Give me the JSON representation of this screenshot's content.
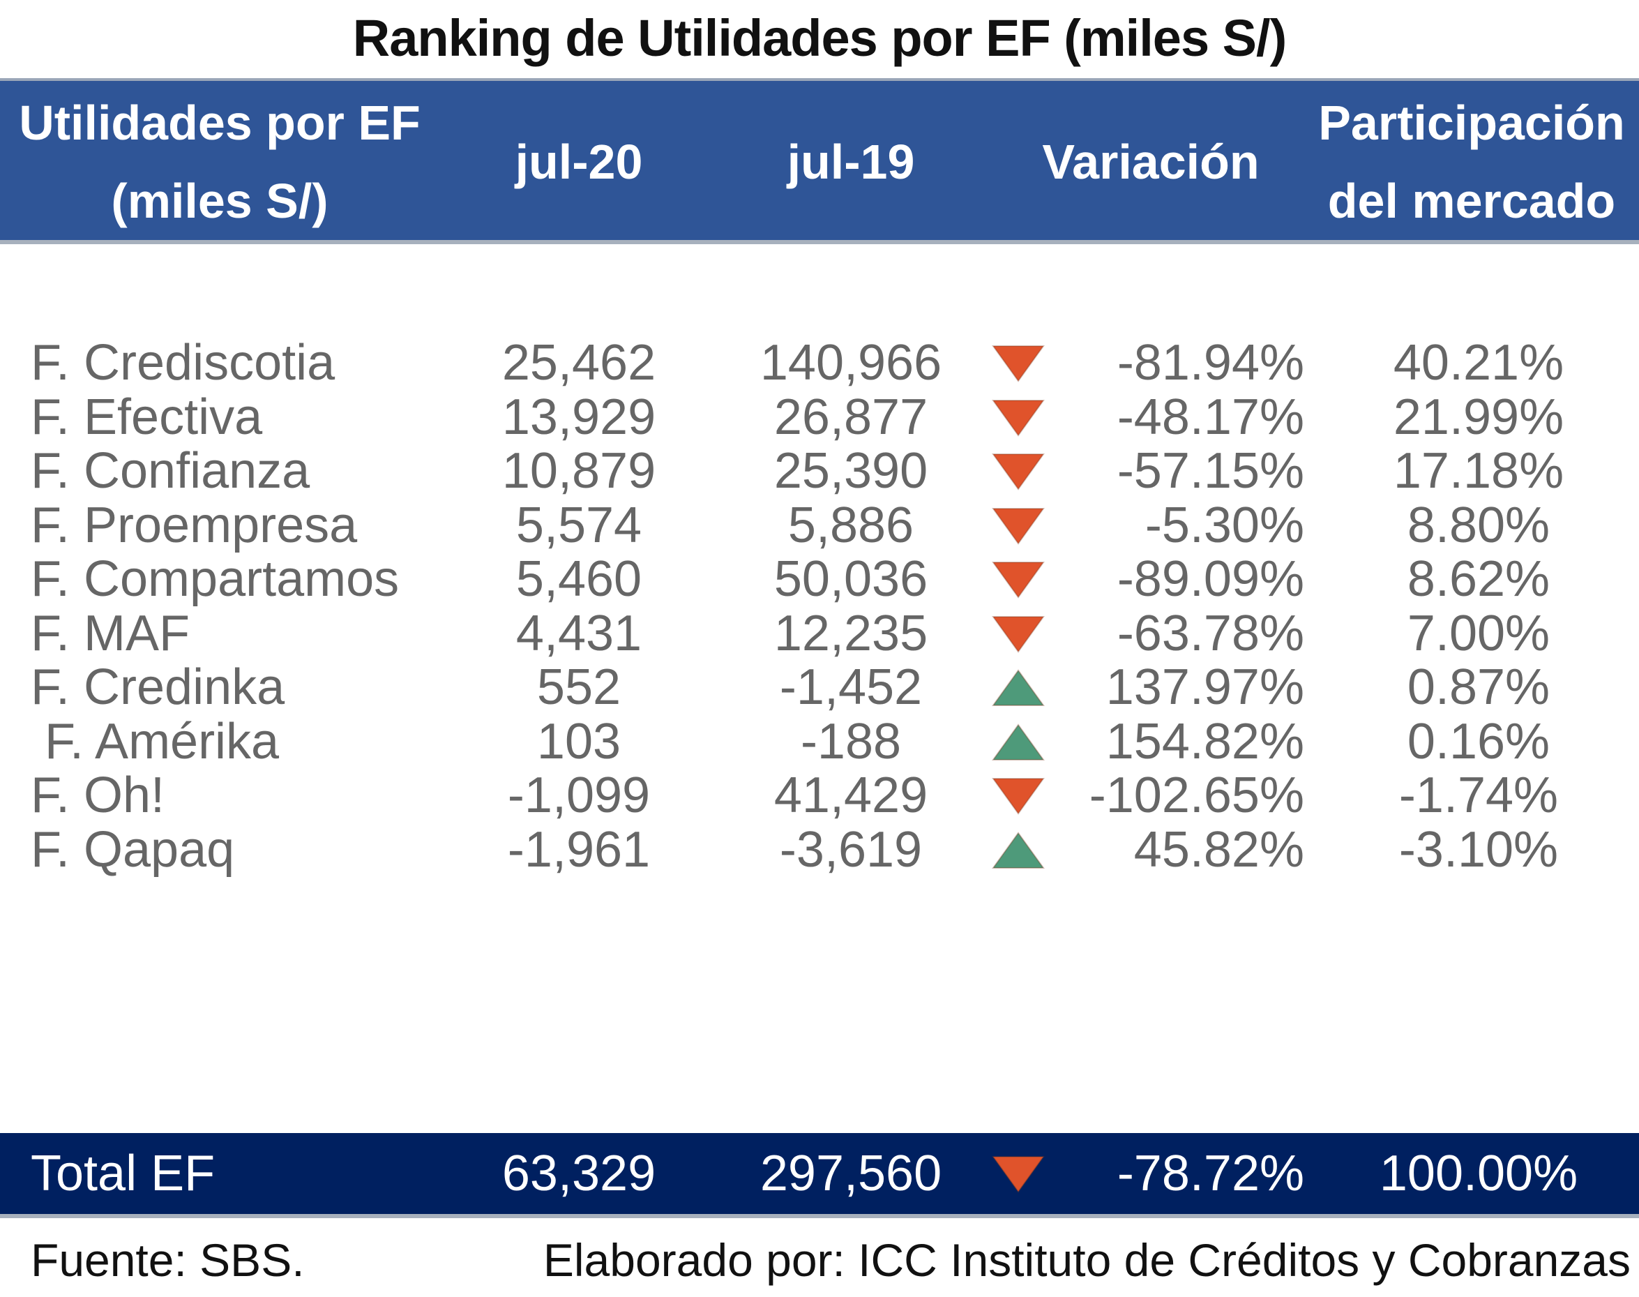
{
  "title": "Ranking de Utilidades por EF (miles S/)",
  "header": {
    "name_line1": "Utilidades por EF",
    "name_line2": "(miles S/)",
    "col_jul20": "jul-20",
    "col_jul19": "jul-19",
    "col_var": "Variación",
    "part_line1": "Participación",
    "part_line2": "del mercado"
  },
  "colors": {
    "header_bg": "#2f5597",
    "total_bg": "#002060",
    "down_arrow": "#e0532b",
    "up_arrow": "#4e9a7a"
  },
  "rows": [
    {
      "name": "F. Crediscotia",
      "jul20": "25,462",
      "jul19": "140,966",
      "trend": "down",
      "var": "-81.94%",
      "part": "40.21%"
    },
    {
      "name": "F. Efectiva",
      "jul20": "13,929",
      "jul19": "26,877",
      "trend": "down",
      "var": "-48.17%",
      "part": "21.99%"
    },
    {
      "name": "F. Confianza",
      "jul20": "10,879",
      "jul19": "25,390",
      "trend": "down",
      "var": "-57.15%",
      "part": "17.18%"
    },
    {
      "name": "F. Proempresa",
      "jul20": "5,574",
      "jul19": "5,886",
      "trend": "down",
      "var": "-5.30%",
      "part": "8.80%"
    },
    {
      "name": "F. Compartamos",
      "jul20": "5,460",
      "jul19": "50,036",
      "trend": "down",
      "var": "-89.09%",
      "part": "8.62%"
    },
    {
      "name": "F. MAF",
      "jul20": "4,431",
      "jul19": "12,235",
      "trend": "down",
      "var": "-63.78%",
      "part": "7.00%"
    },
    {
      "name": "F. Credinka",
      "jul20": "552",
      "jul19": "-1,452",
      "trend": "up",
      "var": "137.97%",
      "part": "0.87%"
    },
    {
      "name": " F. Amérika",
      "jul20": "103",
      "jul19": "-188",
      "trend": "up",
      "var": "154.82%",
      "part": "0.16%"
    },
    {
      "name": "F. Oh!",
      "jul20": "-1,099",
      "jul19": "41,429",
      "trend": "down",
      "var": "-102.65%",
      "part": "-1.74%"
    },
    {
      "name": "F. Qapaq",
      "jul20": "-1,961",
      "jul19": "-3,619",
      "trend": "up",
      "var": "45.82%",
      "part": "-3.10%"
    }
  ],
  "total": {
    "name": "Total EF",
    "jul20": "63,329",
    "jul19": "297,560",
    "trend": "down",
    "var": "-78.72%",
    "part": "100.00%"
  },
  "footer": {
    "source": "Fuente: SBS.",
    "credit": "Elaborado por: ICC Instituto de Créditos y Cobranzas"
  }
}
